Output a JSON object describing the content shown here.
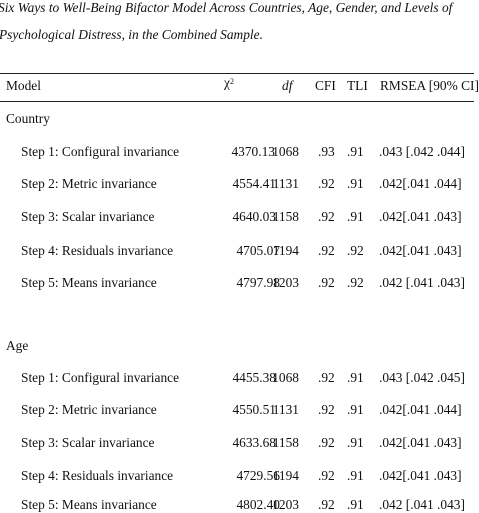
{
  "caption": {
    "line1": "Six Ways to Well-Being Bifactor Model Across Countries, Age, Gender, and Levels of",
    "line2": "Psychological Distress, in the Combined Sample."
  },
  "headers": {
    "model": "Model",
    "chi": "χ",
    "chi_sup": "2",
    "df": "df",
    "cfi": "CFI",
    "tli": "TLI",
    "rmsea": "RMSEA [90% CI]"
  },
  "groups": [
    {
      "label": "Country",
      "rows": [
        {
          "step": "Step 1: Configural invariance",
          "chi": "4370.13",
          "df": "1068",
          "cfi": ".93",
          "tli": ".91",
          "rmsea": ".043 [.042 .044]"
        },
        {
          "step": "Step 2: Metric invariance",
          "chi": "4554.41",
          "df": "1131",
          "cfi": ".92",
          "tli": ".91",
          "rmsea": ".042[.041 .044]"
        },
        {
          "step": "Step 3: Scalar invariance",
          "chi": "4640.03",
          "df": "1158",
          "cfi": ".92",
          "tli": ".91",
          "rmsea": ".042[.041 .043]"
        },
        {
          "step": "Step 4: Residuals invariance",
          "chi": "4705.07",
          "df": "1194",
          "cfi": ".92",
          "tli": ".92",
          "rmsea": ".042[.041 .043]"
        },
        {
          "step": "Step 5: Means invariance",
          "chi": "4797.98",
          "df": "1203",
          "cfi": ".92",
          "tli": ".92",
          "rmsea": ".042 [.041 .043]"
        }
      ]
    },
    {
      "label": "Age",
      "rows": [
        {
          "step": "Step 1: Configural invariance",
          "chi": "4455.38",
          "df": "1068",
          "cfi": ".92",
          "tli": ".91",
          "rmsea": ".043 [.042 .045]"
        },
        {
          "step": "Step 2: Metric invariance",
          "chi": "4550.51",
          "df": "1131",
          "cfi": ".92",
          "tli": ".91",
          "rmsea": ".042[.041 .044]"
        },
        {
          "step": "Step 3: Scalar invariance",
          "chi": "4633.68",
          "df": "1158",
          "cfi": ".92",
          "tli": ".91",
          "rmsea": ".042[.041 .043]"
        },
        {
          "step": "Step 4: Residuals invariance",
          "chi": "4729.56",
          "df": "1194",
          "cfi": ".92",
          "tli": ".91",
          "rmsea": ".042[.041 .043]"
        },
        {
          "step": "Step 5: Means invariance",
          "chi": "4802.40",
          "df": "1203",
          "cfi": ".92",
          "tli": ".91",
          "rmsea": ".042 [.041 .043]"
        }
      ]
    }
  ]
}
